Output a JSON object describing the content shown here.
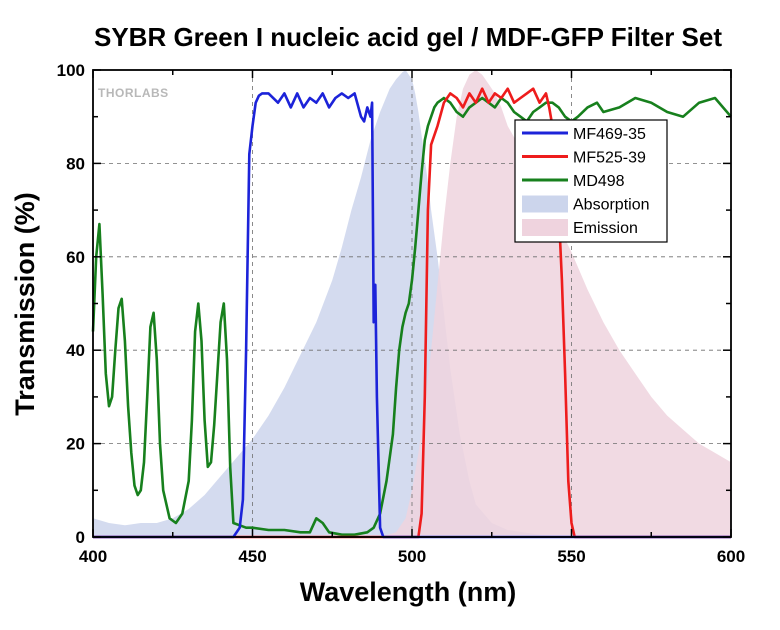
{
  "chart_data": {
    "type": "line",
    "title": "SYBR Green I nucleic acid gel / MDF-GFP Filter Set",
    "xlabel": "Wavelength (nm)",
    "ylabel": "Transmission (%)",
    "xlim": [
      400,
      600
    ],
    "ylim": [
      0,
      100
    ],
    "xticks": [
      "400",
      "450",
      "500",
      "550",
      "600"
    ],
    "yticks": [
      "0",
      "20",
      "40",
      "60",
      "80",
      "100"
    ],
    "grid": "dashed",
    "legend_position": "top-right",
    "watermark": "THORLABS",
    "series": [
      {
        "name": "MF469-35",
        "kind": "line",
        "color": "#1c23d9",
        "x": [
          400,
          444,
          446,
          447,
          448,
          449,
          450,
          451,
          452,
          453,
          455,
          458,
          460,
          462,
          464,
          466,
          468,
          470,
          472,
          474,
          476,
          478,
          480,
          482,
          484,
          485,
          486,
          487,
          487.5,
          488,
          488.5,
          489,
          490,
          491,
          600
        ],
        "y": [
          0,
          0,
          2,
          8,
          40,
          82,
          88,
          93,
          94.5,
          95,
          95,
          93,
          95,
          92,
          95,
          92,
          94,
          93,
          95,
          92,
          94,
          95,
          94,
          95,
          90,
          89,
          92,
          90,
          93,
          46,
          54,
          30,
          2,
          0,
          0
        ]
      },
      {
        "name": "MF525-39",
        "kind": "line",
        "color": "#ee1c1c",
        "x": [
          400,
          502,
          503,
          504,
          505,
          506,
          508,
          510,
          512,
          514,
          516,
          518,
          520,
          522,
          524,
          526,
          528,
          530,
          532,
          534,
          536,
          538,
          540,
          542,
          543,
          544,
          545,
          546,
          547,
          548,
          549,
          550,
          551,
          600
        ],
        "y": [
          0,
          0,
          5,
          30,
          70,
          84,
          88,
          93,
          95,
          94,
          92,
          95,
          93,
          96,
          93,
          95,
          94,
          96,
          93,
          94,
          95,
          96,
          93,
          95,
          92,
          88,
          80,
          70,
          55,
          35,
          12,
          3,
          0,
          0
        ]
      },
      {
        "name": "MD498",
        "kind": "line",
        "color": "#17801d",
        "x": [
          400,
          401,
          402,
          403,
          404,
          405,
          406,
          407,
          408,
          409,
          410,
          411,
          412,
          413,
          414,
          415,
          416,
          417,
          418,
          419,
          420,
          421,
          422,
          424,
          426,
          428,
          430,
          431,
          432,
          433,
          434,
          435,
          436,
          437,
          438,
          439,
          440,
          441,
          442,
          443,
          444,
          446,
          448,
          450,
          455,
          460,
          465,
          468,
          470,
          472,
          474,
          478,
          482,
          486,
          488,
          490,
          492,
          494,
          495,
          496,
          497,
          498,
          499,
          500,
          501,
          502,
          503,
          504,
          505,
          506,
          507,
          508,
          510,
          512,
          514,
          516,
          518,
          520,
          522,
          524,
          526,
          528,
          530,
          532,
          534,
          536,
          538,
          540,
          542,
          544,
          546,
          548,
          550,
          552,
          555,
          558,
          560,
          565,
          570,
          575,
          580,
          585,
          590,
          595,
          600
        ],
        "y": [
          44,
          60,
          67,
          52,
          35,
          28,
          30,
          40,
          49,
          51,
          42,
          28,
          18,
          11,
          9,
          10,
          16,
          30,
          45,
          48,
          38,
          20,
          10,
          4,
          3,
          5,
          12,
          25,
          44,
          50,
          42,
          25,
          15,
          16,
          24,
          35,
          46,
          50,
          38,
          15,
          3,
          2.5,
          2,
          2,
          1.5,
          1.5,
          1,
          1,
          4,
          3,
          1,
          0.5,
          0.5,
          1,
          2,
          5,
          12,
          22,
          32,
          40,
          45,
          48,
          50,
          55,
          62,
          70,
          78,
          85,
          88,
          90,
          92,
          93,
          94,
          93,
          91,
          90,
          92,
          93,
          94,
          93,
          92,
          94,
          93,
          91,
          90,
          89,
          91,
          92,
          93,
          93,
          92,
          90,
          89,
          90,
          92,
          93,
          91,
          92,
          94,
          93,
          91,
          90,
          93,
          94,
          90
        ]
      },
      {
        "name": "Absorption",
        "kind": "area",
        "color": "#ccd5ec",
        "x": [
          400,
          405,
          410,
          415,
          420,
          425,
          430,
          435,
          440,
          445,
          450,
          455,
          460,
          465,
          470,
          475,
          478,
          481,
          484,
          487,
          490,
          493,
          495,
          497,
          498,
          499,
          500,
          501,
          502,
          503,
          504,
          505,
          506,
          508,
          510,
          512,
          515,
          518,
          520,
          525,
          530,
          540,
          550,
          600
        ],
        "y": [
          4,
          3,
          2.5,
          3,
          3,
          4,
          6,
          9,
          13,
          17,
          21,
          26,
          32,
          39,
          46,
          55,
          62,
          70,
          77,
          85,
          91,
          96,
          98,
          99.5,
          100,
          99,
          98,
          95,
          91,
          86,
          81,
          76,
          70,
          60,
          48,
          36,
          22,
          12,
          7,
          3,
          1.5,
          0.5,
          0,
          0
        ]
      },
      {
        "name": "Emission",
        "kind": "area",
        "color": "#efd3de",
        "x": [
          490,
          495,
          498,
          500,
          502,
          504,
          506,
          508,
          510,
          512,
          514,
          516,
          518,
          520,
          522,
          524,
          526,
          528,
          530,
          535,
          540,
          545,
          550,
          555,
          560,
          565,
          570,
          575,
          580,
          585,
          590,
          595,
          600
        ],
        "y": [
          0,
          1,
          4,
          10,
          18,
          28,
          40,
          54,
          68,
          80,
          90,
          96,
          99,
          100,
          99,
          97,
          95,
          92,
          88,
          82,
          75,
          68,
          61,
          53,
          46,
          40,
          35,
          30,
          26,
          23,
          20,
          18,
          16
        ]
      }
    ]
  }
}
